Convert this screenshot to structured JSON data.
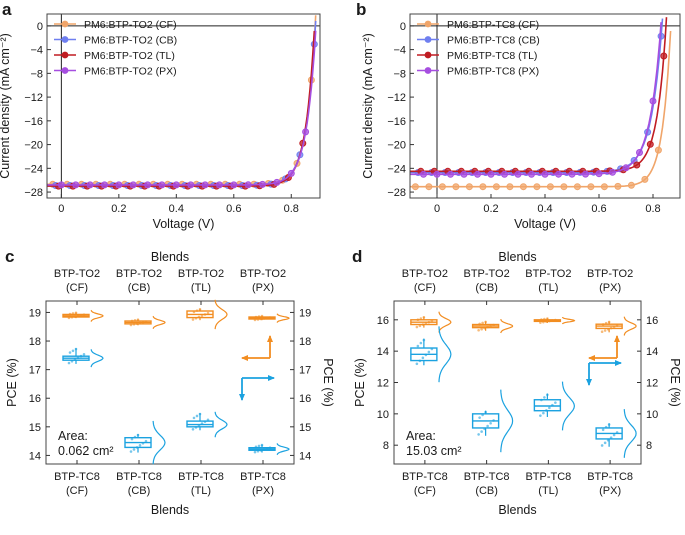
{
  "colors": {
    "CF": "#f0a56a",
    "CB": "#6f7ff0",
    "TL": "#c01c22",
    "PX": "#a64ee0",
    "TO2": "#f28d21",
    "TC8": "#1ba2e0",
    "frame": "#444444"
  },
  "chart_data": [
    {
      "panel": "a",
      "type": "line",
      "xlabel": "Voltage (V)",
      "ylabel": "Current density (mA cm⁻²)",
      "xlim": [
        -0.05,
        0.9
      ],
      "ylim": [
        -29,
        2
      ],
      "xticks": [
        0,
        0.2,
        0.4,
        0.6,
        0.8
      ],
      "xtick_labels": [
        "0",
        "0.2",
        "0.4",
        "0.6",
        "0.8"
      ],
      "yticks": [
        0,
        -4,
        -8,
        -12,
        -16,
        -20,
        -24,
        -28
      ],
      "ytick_labels": [
        "0",
        "−4",
        "−8",
        "−12",
        "−16",
        "−20",
        "−24",
        "−28"
      ],
      "legend_position": "top-left",
      "series": [
        {
          "name": "PM6:BTP-TO2 (CF)",
          "key": "CF",
          "jsc": -26.7,
          "voc": 0.883,
          "ff": 0.8
        },
        {
          "name": "PM6:BTP-TO2 (CB)",
          "key": "CB",
          "jsc": -26.9,
          "voc": 0.884,
          "ff": 0.79
        },
        {
          "name": "PM6:BTP-TO2 (TL)",
          "key": "TL",
          "jsc": -27.0,
          "voc": 0.881,
          "ff": 0.8
        },
        {
          "name": "PM6:BTP-TO2 (PX)",
          "key": "PX",
          "jsc": -26.8,
          "voc": 0.886,
          "ff": 0.79
        }
      ]
    },
    {
      "panel": "b",
      "type": "line",
      "xlabel": "Voltage (V)",
      "ylabel": "Current density (mA cm⁻²)",
      "xlim": [
        -0.1,
        0.9
      ],
      "ylim": [
        -29,
        2
      ],
      "xticks": [
        0,
        0.2,
        0.4,
        0.6,
        0.8
      ],
      "xtick_labels": [
        "0",
        "0.2",
        "0.4",
        "0.6",
        "0.8"
      ],
      "yticks": [
        0,
        -4,
        -8,
        -12,
        -16,
        -20,
        -24,
        -28
      ],
      "ytick_labels": [
        "0",
        "−4",
        "−8",
        "−12",
        "−16",
        "−20",
        "−24",
        "−28"
      ],
      "legend_position": "top-left",
      "series": [
        {
          "name": "PM6:BTP-TC8 (CF)",
          "key": "CF",
          "jsc": -27.1,
          "voc": 0.866,
          "ff": 0.8
        },
        {
          "name": "PM6:BTP-TC8 (CB)",
          "key": "CB",
          "jsc": -24.7,
          "voc": 0.833,
          "ff": 0.74
        },
        {
          "name": "PM6:BTP-TC8 (TL)",
          "key": "TL",
          "jsc": -24.5,
          "voc": 0.848,
          "ff": 0.78
        },
        {
          "name": "PM6:BTP-TC8 (PX)",
          "key": "PX",
          "jsc": -25.0,
          "voc": 0.829,
          "ff": 0.74
        }
      ]
    },
    {
      "panel": "c",
      "type": "box",
      "top_title": "Blends",
      "bottom_title": "Blends",
      "ylabel_left": "PCE (%)",
      "ylabel_right": "PCE (%)",
      "ylim": [
        13.7,
        19.4
      ],
      "yticks": [
        14,
        15,
        16,
        17,
        18,
        19
      ],
      "top_categories": [
        [
          "BTP-TO2",
          "(CF)"
        ],
        [
          "BTP-TO2",
          "(CB)"
        ],
        [
          "BTP-TO2",
          "(TL)"
        ],
        [
          "BTP-TO2",
          "(PX)"
        ]
      ],
      "bottom_categories": [
        [
          "BTP-TC8",
          "(CF)"
        ],
        [
          "BTP-TC8",
          "(CB)"
        ],
        [
          "BTP-TC8",
          "(TL)"
        ],
        [
          "BTP-TC8",
          "(PX)"
        ]
      ],
      "annotation": [
        "Area:",
        "0.062 cm²"
      ],
      "series": [
        {
          "name": "BTP-TO2",
          "key": "TO2",
          "boxes": [
            {
              "min": 18.8,
              "q1": 18.84,
              "median": 18.88,
              "q3": 18.93,
              "max": 19.0
            },
            {
              "min": 18.55,
              "q1": 18.6,
              "median": 18.65,
              "q3": 18.7,
              "max": 18.76
            },
            {
              "min": 18.73,
              "q1": 18.82,
              "median": 18.93,
              "q3": 19.05,
              "max": 19.13
            },
            {
              "min": 18.73,
              "q1": 18.77,
              "median": 18.8,
              "q3": 18.84,
              "max": 18.88
            }
          ]
        },
        {
          "name": "BTP-TC8",
          "key": "TC8",
          "boxes": [
            {
              "min": 17.2,
              "q1": 17.33,
              "median": 17.4,
              "q3": 17.47,
              "max": 17.75
            },
            {
              "min": 14.1,
              "q1": 14.28,
              "median": 14.45,
              "q3": 14.62,
              "max": 14.75
            },
            {
              "min": 14.88,
              "q1": 15.0,
              "median": 15.08,
              "q3": 15.2,
              "max": 15.48
            },
            {
              "min": 14.1,
              "q1": 14.18,
              "median": 14.22,
              "q3": 14.27,
              "max": 14.38
            }
          ]
        }
      ]
    },
    {
      "panel": "d",
      "type": "box",
      "top_title": "Blends",
      "bottom_title": "Blends",
      "ylabel_left": "PCE (%)",
      "ylabel_right": "PCE (%)",
      "ylim": [
        6.8,
        17.2
      ],
      "yticks": [
        8,
        10,
        12,
        14,
        16
      ],
      "top_categories": [
        [
          "BTP-TO2",
          "(CF)"
        ],
        [
          "BTP-TO2",
          "(CB)"
        ],
        [
          "BTP-TO2",
          "(TL)"
        ],
        [
          "BTP-TO2",
          "(PX)"
        ]
      ],
      "bottom_categories": [
        [
          "BTP-TC8",
          "(CF)"
        ],
        [
          "BTP-TC8",
          "(CB)"
        ],
        [
          "BTP-TC8",
          "(TL)"
        ],
        [
          "BTP-TC8",
          "(PX)"
        ]
      ],
      "annotation": [
        "Area:",
        "15.03 cm²"
      ],
      "series": [
        {
          "name": "BTP-TO2",
          "key": "TO2",
          "boxes": [
            {
              "min": 15.5,
              "q1": 15.7,
              "median": 15.85,
              "q3": 16.0,
              "max": 16.2
            },
            {
              "min": 15.3,
              "q1": 15.5,
              "median": 15.6,
              "q3": 15.7,
              "max": 15.9
            },
            {
              "min": 15.8,
              "q1": 15.9,
              "median": 15.95,
              "q3": 16.0,
              "max": 16.1
            },
            {
              "min": 15.2,
              "q1": 15.45,
              "median": 15.6,
              "q3": 15.72,
              "max": 15.9
            }
          ]
        },
        {
          "name": "BTP-TC8",
          "key": "TC8",
          "boxes": [
            {
              "min": 13.1,
              "q1": 13.4,
              "median": 13.8,
              "q3": 14.2,
              "max": 14.8
            },
            {
              "min": 8.6,
              "q1": 9.1,
              "median": 9.55,
              "q3": 10.0,
              "max": 10.2
            },
            {
              "min": 9.8,
              "q1": 10.2,
              "median": 10.5,
              "q3": 10.9,
              "max": 11.3
            },
            {
              "min": 7.9,
              "q1": 8.4,
              "median": 8.75,
              "q3": 9.1,
              "max": 9.4
            }
          ]
        }
      ]
    }
  ]
}
